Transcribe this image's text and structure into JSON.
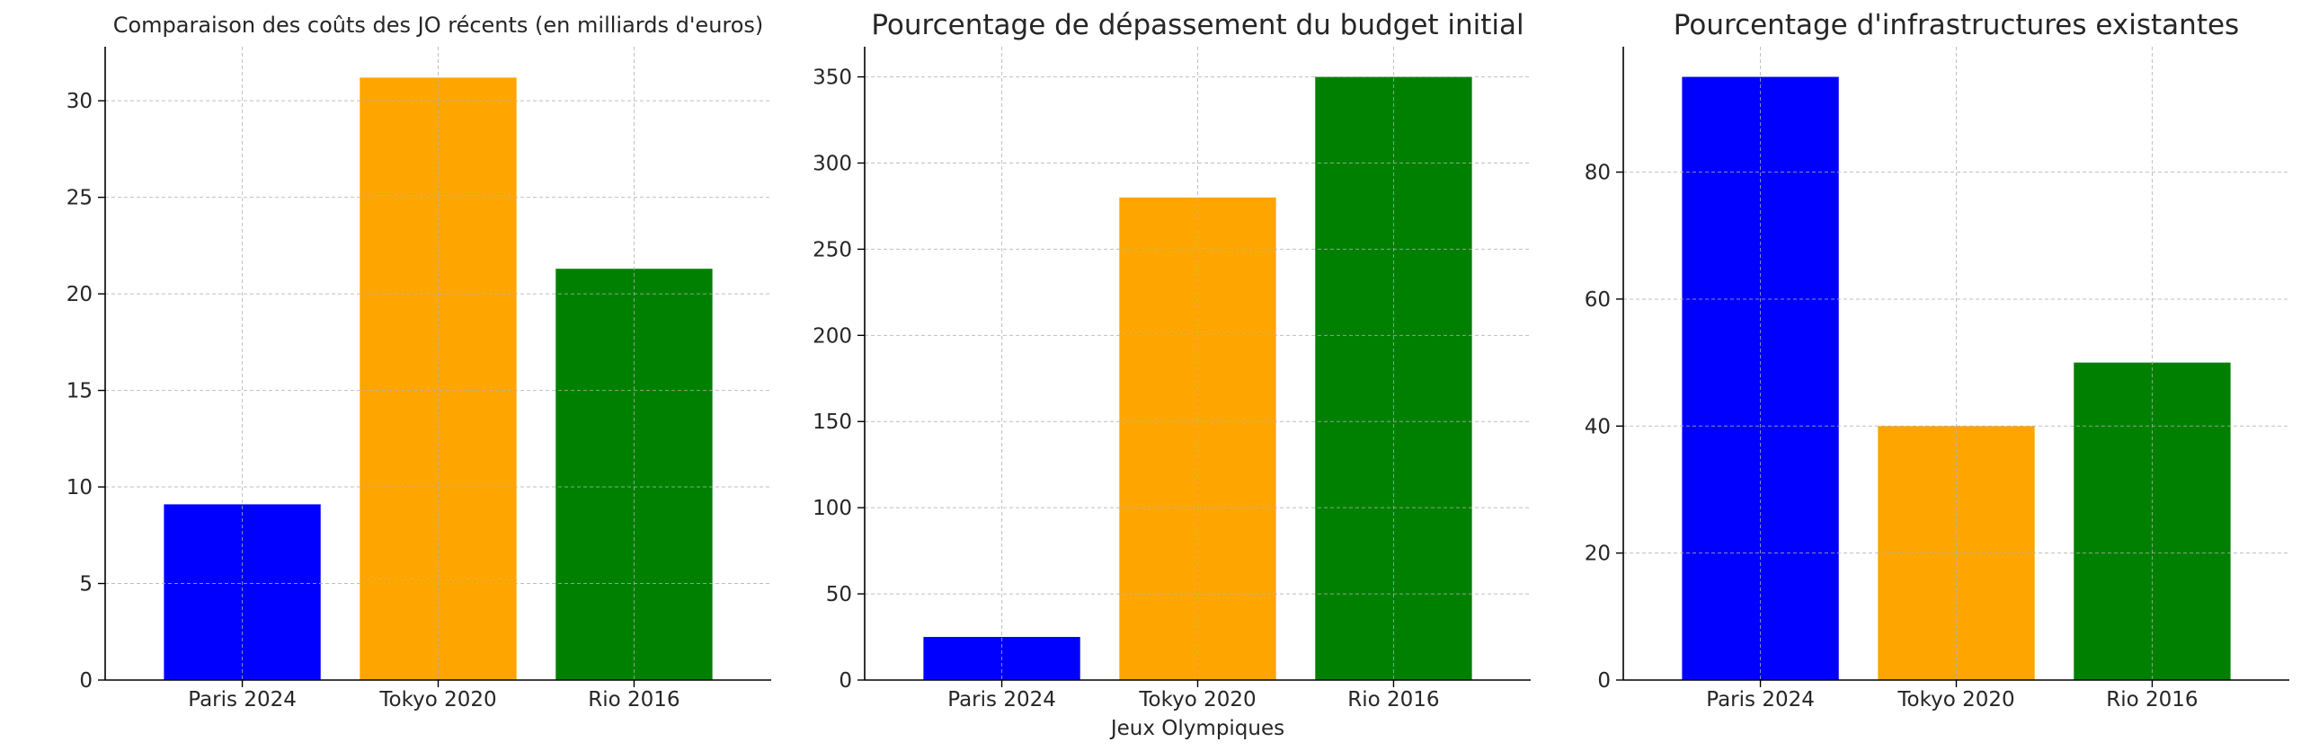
{
  "chart_data": [
    {
      "type": "bar",
      "title": "Comparaison des coûts des JO récents (en milliards d'euros)",
      "xlabel": "",
      "ylabel": "",
      "categories": [
        "Paris 2024",
        "Tokyo 2020",
        "Rio 2016"
      ],
      "values": [
        9.1,
        31.2,
        21.3
      ],
      "colors": [
        "#0000ff",
        "#ffa500",
        "#008000"
      ],
      "ylim": [
        0,
        32.8
      ],
      "yticks": [
        0,
        5,
        10,
        15,
        20,
        25,
        30
      ],
      "grid": true
    },
    {
      "type": "bar",
      "title": "Pourcentage de dépassement du budget initial",
      "xlabel": "Jeux Olympiques",
      "ylabel": "",
      "categories": [
        "Paris 2024",
        "Tokyo 2020",
        "Rio 2016"
      ],
      "values": [
        25,
        280,
        350
      ],
      "colors": [
        "#0000ff",
        "#ffa500",
        "#008000"
      ],
      "ylim": [
        0,
        367.5
      ],
      "yticks": [
        0,
        50,
        100,
        150,
        200,
        250,
        300,
        350
      ],
      "grid": true
    },
    {
      "type": "bar",
      "title": "Pourcentage d'infrastructures existantes",
      "xlabel": "",
      "ylabel": "",
      "categories": [
        "Paris 2024",
        "Tokyo 2020",
        "Rio 2016"
      ],
      "values": [
        95,
        40,
        50
      ],
      "colors": [
        "#0000ff",
        "#ffa500",
        "#008000"
      ],
      "ylim": [
        0,
        99.75
      ],
      "yticks": [
        0,
        20,
        40,
        60,
        80
      ],
      "grid": true
    }
  ]
}
